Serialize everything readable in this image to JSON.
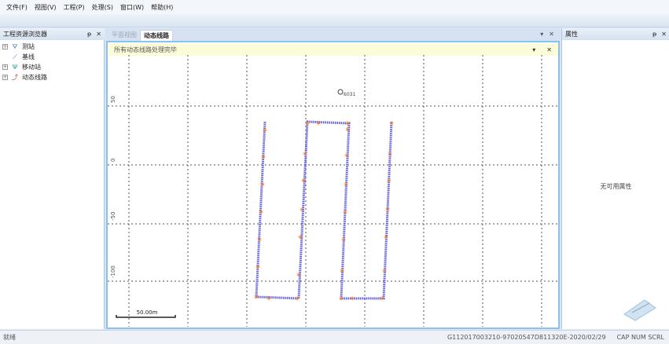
{
  "menu": [
    "文件(F)",
    "视图(V)",
    "工程(P)",
    "处理(S)",
    "窗口(W)",
    "帮助(H)"
  ],
  "left_panel": {
    "title": "工程资源浏览器",
    "pin": "ᵽ",
    "close": "✕",
    "items": [
      {
        "label": "测站",
        "icon": "station-icon",
        "expandable": true
      },
      {
        "label": "基线",
        "icon": "baseline-icon",
        "expandable": false
      },
      {
        "label": "移动站",
        "icon": "rover-icon",
        "expandable": true
      },
      {
        "label": "动态线路",
        "icon": "kinematic-route-icon",
        "expandable": true
      }
    ]
  },
  "center": {
    "tabs": [
      {
        "label": "平面视图",
        "active": false
      },
      {
        "label": "动态线路",
        "active": true
      }
    ],
    "notice": "所有动态线路处理完毕",
    "map": {
      "station_label": "6031",
      "y_ticks": [
        "50",
        "0",
        "-50",
        "-100"
      ],
      "scale_label": "50.00m",
      "colors": {
        "track": "#5a5ae0",
        "epoch_marker": "#f07a30",
        "grid": "#555555"
      }
    }
  },
  "right_panel": {
    "title": "属性",
    "empty_text": "无可用属性"
  },
  "status": {
    "left": "就绪",
    "file": "G112017003210-97020547D811320E-2020/02/29",
    "cap": "CAP",
    "num": "NUM",
    "scrl": "SCRL"
  }
}
